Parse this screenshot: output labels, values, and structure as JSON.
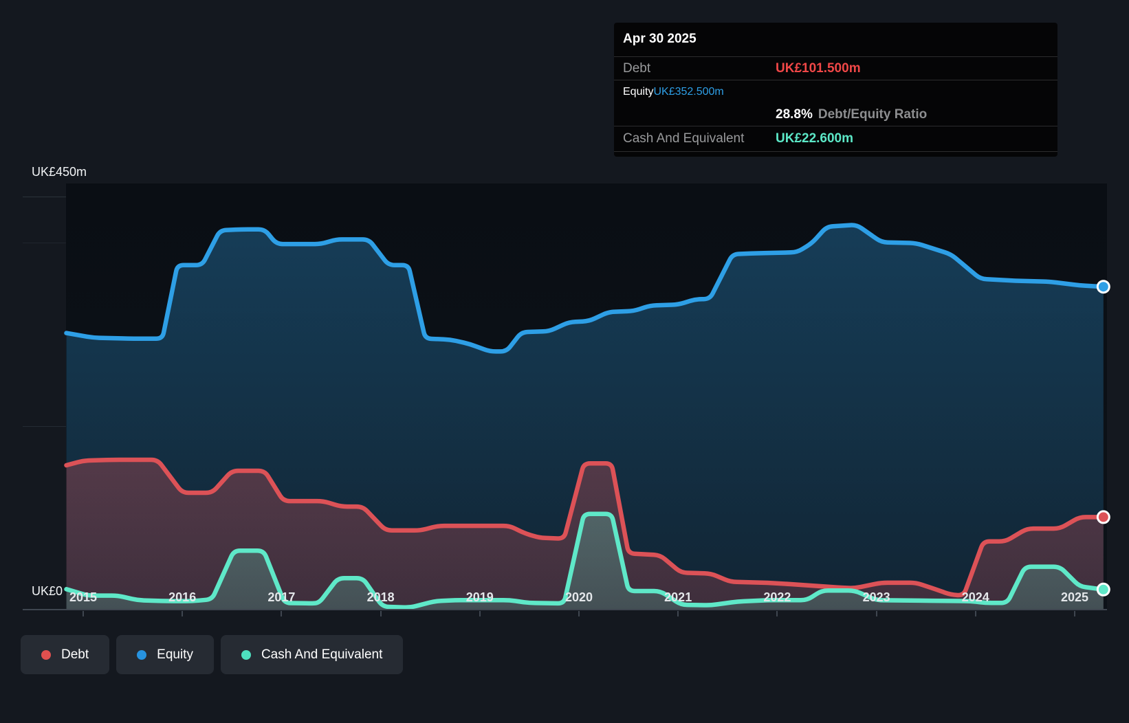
{
  "axis": {
    "y_top": "UK£450m",
    "y_bottom": "UK£0"
  },
  "tooltip": {
    "date": "Apr 30 2025",
    "debt_label": "Debt",
    "debt_value": "UK£101.500m",
    "equity_label": "Equity",
    "equity_value": "UK£352.500m",
    "ratio_value": "28.8%",
    "ratio_label": "Debt/Equity Ratio",
    "cash_label": "Cash And Equivalent",
    "cash_value": "UK£22.600m"
  },
  "legend": {
    "items": [
      {
        "label": "Debt",
        "color": "#e0504f"
      },
      {
        "label": "Equity",
        "color": "#2793e0"
      },
      {
        "label": "Cash And Equivalent",
        "color": "#4ee0bf"
      }
    ]
  },
  "colors": {
    "debt_line": "#dc5257",
    "equity_line": "#2e9fe6",
    "cash_line": "#5fe8c8",
    "debt_text": "#f04747",
    "equity_text": "#2e9fe6",
    "cash_text": "#5ce8c7",
    "page_bg": "#14181f",
    "tooltip_bg": "#050506",
    "legend_bg": "#262b33"
  },
  "chart_data": {
    "type": "area",
    "title": "Debt to Equity History",
    "x_ticks": [
      "2015",
      "2016",
      "2017",
      "2018",
      "2019",
      "2020",
      "2021",
      "2022",
      "2023",
      "2024",
      "2025"
    ],
    "xlim": [
      2014.83,
      2025.29
    ],
    "ylim": [
      0,
      450
    ],
    "ylabel": "UK£m",
    "y_gridlines": [
      450,
      400,
      200,
      0
    ],
    "grid": true,
    "legend_position": "bottom-left",
    "end_date": "Apr 30 2025",
    "end_values": {
      "debt": 101.5,
      "equity": 352.5,
      "cash": 22.6,
      "debt_equity_ratio_pct": 28.8
    },
    "series": [
      {
        "name": "Equity",
        "color": "#2e9fe6",
        "points": [
          [
            2014.83,
            302
          ],
          [
            2015.1,
            297
          ],
          [
            2015.45,
            296
          ],
          [
            2015.8,
            296
          ],
          [
            2015.95,
            376
          ],
          [
            2016.2,
            376
          ],
          [
            2016.38,
            414
          ],
          [
            2016.6,
            415
          ],
          [
            2016.83,
            415
          ],
          [
            2016.95,
            399
          ],
          [
            2017.4,
            399
          ],
          [
            2017.55,
            404
          ],
          [
            2017.88,
            404
          ],
          [
            2018.08,
            376
          ],
          [
            2018.28,
            376
          ],
          [
            2018.45,
            296
          ],
          [
            2018.7,
            295
          ],
          [
            2018.9,
            290
          ],
          [
            2019.1,
            282
          ],
          [
            2019.27,
            282
          ],
          [
            2019.42,
            303
          ],
          [
            2019.7,
            304
          ],
          [
            2019.9,
            314
          ],
          [
            2020.1,
            315
          ],
          [
            2020.3,
            325
          ],
          [
            2020.55,
            326
          ],
          [
            2020.72,
            332
          ],
          [
            2021.0,
            333
          ],
          [
            2021.18,
            339
          ],
          [
            2021.32,
            339
          ],
          [
            2021.55,
            388
          ],
          [
            2021.8,
            389
          ],
          [
            2022.2,
            390
          ],
          [
            2022.35,
            400
          ],
          [
            2022.5,
            418
          ],
          [
            2022.8,
            420
          ],
          [
            2023.05,
            401
          ],
          [
            2023.4,
            400
          ],
          [
            2023.75,
            388
          ],
          [
            2024.05,
            361
          ],
          [
            2024.4,
            359
          ],
          [
            2024.75,
            358
          ],
          [
            2025.05,
            354
          ],
          [
            2025.29,
            352.5
          ]
        ]
      },
      {
        "name": "Debt",
        "color": "#dc5257",
        "points": [
          [
            2014.83,
            158
          ],
          [
            2015.0,
            163
          ],
          [
            2015.3,
            164
          ],
          [
            2015.75,
            164
          ],
          [
            2016.0,
            128
          ],
          [
            2016.3,
            128
          ],
          [
            2016.5,
            152
          ],
          [
            2016.83,
            152
          ],
          [
            2017.02,
            119
          ],
          [
            2017.42,
            119
          ],
          [
            2017.6,
            113
          ],
          [
            2017.82,
            113
          ],
          [
            2018.05,
            87
          ],
          [
            2018.4,
            87
          ],
          [
            2018.58,
            92
          ],
          [
            2019.3,
            92
          ],
          [
            2019.45,
            84
          ],
          [
            2019.6,
            79
          ],
          [
            2019.85,
            78
          ],
          [
            2020.05,
            160
          ],
          [
            2020.33,
            160
          ],
          [
            2020.5,
            62
          ],
          [
            2020.82,
            60
          ],
          [
            2021.03,
            41
          ],
          [
            2021.33,
            40
          ],
          [
            2021.53,
            31
          ],
          [
            2021.9,
            30
          ],
          [
            2022.2,
            28
          ],
          [
            2022.6,
            25
          ],
          [
            2022.78,
            24
          ],
          [
            2023.05,
            30
          ],
          [
            2023.4,
            30
          ],
          [
            2023.62,
            22
          ],
          [
            2023.75,
            17
          ],
          [
            2023.88,
            16
          ],
          [
            2024.08,
            75
          ],
          [
            2024.3,
            75
          ],
          [
            2024.52,
            89
          ],
          [
            2024.85,
            89
          ],
          [
            2025.05,
            101.5
          ],
          [
            2025.29,
            101.5
          ]
        ]
      },
      {
        "name": "Cash And Equivalent",
        "color": "#5fe8c8",
        "points": [
          [
            2014.83,
            23
          ],
          [
            2015.05,
            16
          ],
          [
            2015.35,
            16
          ],
          [
            2015.55,
            11
          ],
          [
            2015.85,
            10
          ],
          [
            2016.1,
            10
          ],
          [
            2016.3,
            12
          ],
          [
            2016.52,
            65
          ],
          [
            2016.82,
            65
          ],
          [
            2017.03,
            8
          ],
          [
            2017.3,
            7.5
          ],
          [
            2017.38,
            8
          ],
          [
            2017.57,
            35
          ],
          [
            2017.82,
            35
          ],
          [
            2018.02,
            4
          ],
          [
            2018.3,
            3
          ],
          [
            2018.55,
            10
          ],
          [
            2018.75,
            11
          ],
          [
            2019.3,
            11
          ],
          [
            2019.5,
            8
          ],
          [
            2019.85,
            7.5
          ],
          [
            2020.05,
            105
          ],
          [
            2020.33,
            105
          ],
          [
            2020.5,
            21
          ],
          [
            2020.82,
            21
          ],
          [
            2021.03,
            6
          ],
          [
            2021.33,
            5.5
          ],
          [
            2021.6,
            9.5
          ],
          [
            2021.9,
            11
          ],
          [
            2022.3,
            11
          ],
          [
            2022.45,
            21.5
          ],
          [
            2022.78,
            21.5
          ],
          [
            2023.0,
            11
          ],
          [
            2023.5,
            10.5
          ],
          [
            2023.95,
            10
          ],
          [
            2024.1,
            8
          ],
          [
            2024.32,
            8
          ],
          [
            2024.5,
            47.5
          ],
          [
            2024.85,
            47.5
          ],
          [
            2025.05,
            26
          ],
          [
            2025.29,
            22.6
          ]
        ]
      }
    ]
  }
}
